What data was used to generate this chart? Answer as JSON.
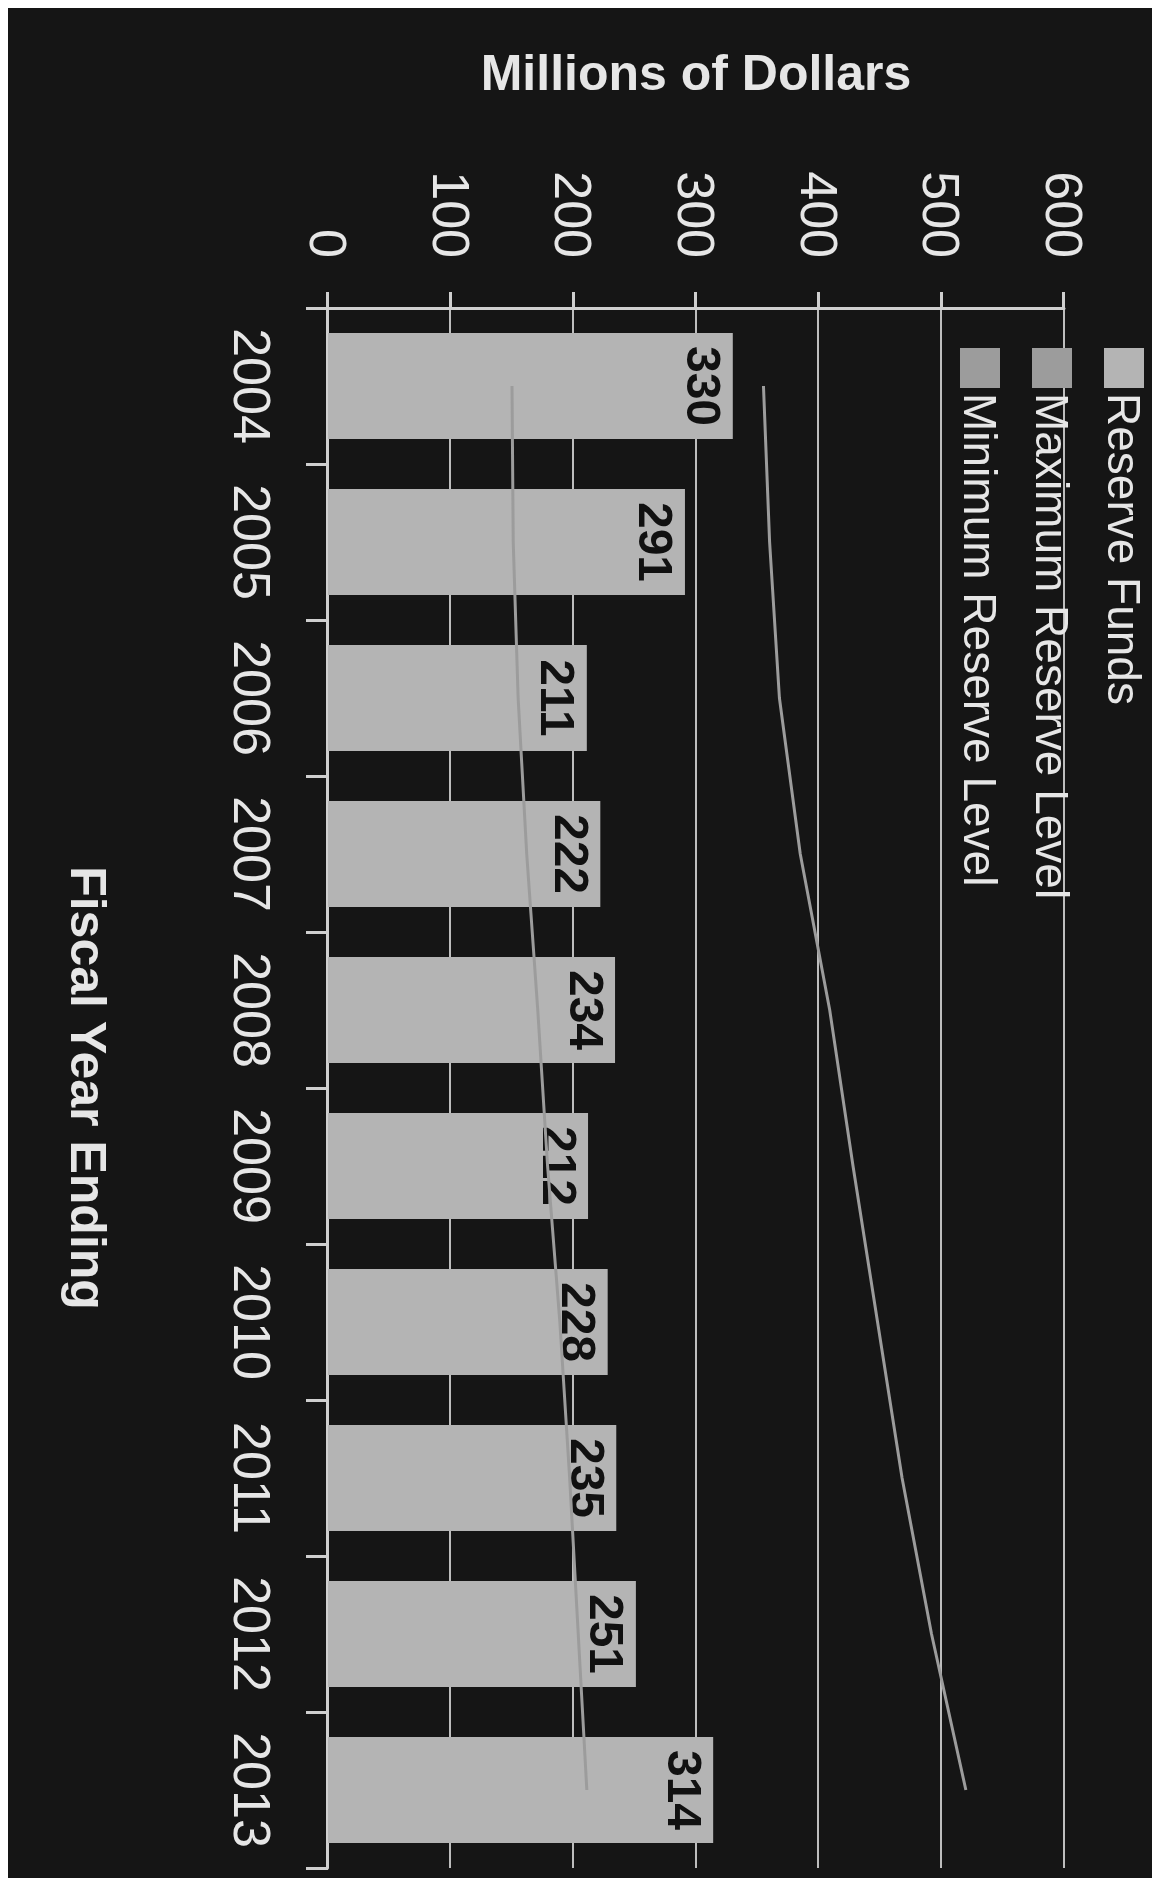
{
  "chart_data": {
    "type": "bar",
    "orientation": "horizontal",
    "xlabel": "Millions of Dollars",
    "ylabel": "Fiscal Year Ending",
    "categories": [
      "2004",
      "2005",
      "2006",
      "2007",
      "2008",
      "2009",
      "2010",
      "2011",
      "2012",
      "2013"
    ],
    "series": [
      {
        "name": "Reserve Funds",
        "color": "#b4b4b4",
        "values": [
          330,
          291,
          211,
          222,
          234,
          212,
          228,
          235,
          251,
          314
        ],
        "value_labels": [
          "330",
          "291",
          "211",
          "222",
          "234",
          "212",
          "228",
          "235",
          "251",
          "314"
        ]
      },
      {
        "name": "Maximum Reserve Level",
        "type": "line",
        "color": "#9c9c9c",
        "values": [
          355,
          360,
          368,
          385,
          409,
          428,
          448,
          468,
          492,
          520
        ]
      },
      {
        "name": "Minimum Reserve Level",
        "type": "line",
        "color": "#9c9c9c",
        "values": [
          150,
          151,
          155,
          162,
          171,
          179,
          189,
          197,
          204,
          211
        ]
      }
    ],
    "xlim": [
      0,
      600
    ],
    "xticks": [
      0,
      100,
      200,
      300,
      400,
      500,
      600
    ],
    "grid": "x",
    "legend": "top right",
    "marker": "none"
  }
}
